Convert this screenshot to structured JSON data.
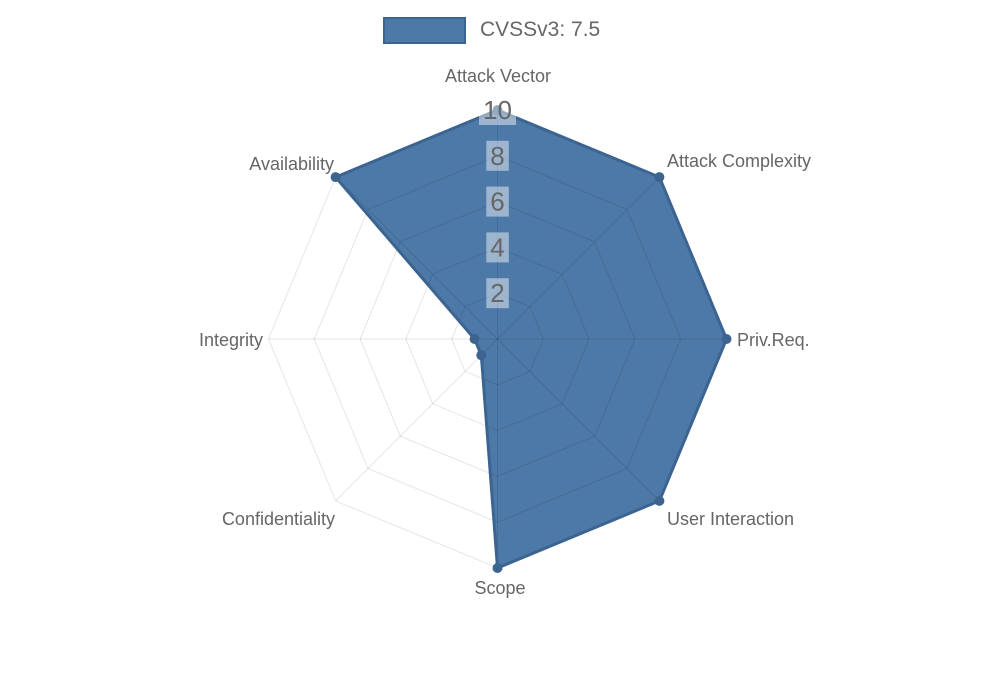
{
  "legend": {
    "position": "top",
    "items": [
      {
        "label": "CVSSv3: 7.5",
        "swatch_color": "#4D79A8",
        "swatch_border": "#3C6491"
      }
    ]
  },
  "chart_data": {
    "type": "radar",
    "title": "",
    "categories": [
      "Attack Vector",
      "Attack Complexity",
      "Priv.Req.",
      "User Interaction",
      "Scope",
      "Confidentiality",
      "Integrity",
      "Availability"
    ],
    "series": [
      {
        "name": "CVSSv3: 7.5",
        "values": [
          10,
          10,
          10,
          10,
          10,
          1,
          1,
          10
        ],
        "fill_color": "#4D79A8",
        "stroke_color": "#3C6491",
        "point_color": "#3C6491"
      }
    ],
    "radial_axis": {
      "ticks": [
        2,
        4,
        6,
        8,
        10
      ],
      "min": 0,
      "max": 10,
      "tick_color": "#666666",
      "tick_backdrop_color": "rgba(255,255,255,0.45)"
    },
    "grid": {
      "show": true,
      "shape": "polygon",
      "color": "rgba(0,0,0,0.1)"
    },
    "axis_label_color": "#666666",
    "legend_position": "top"
  }
}
